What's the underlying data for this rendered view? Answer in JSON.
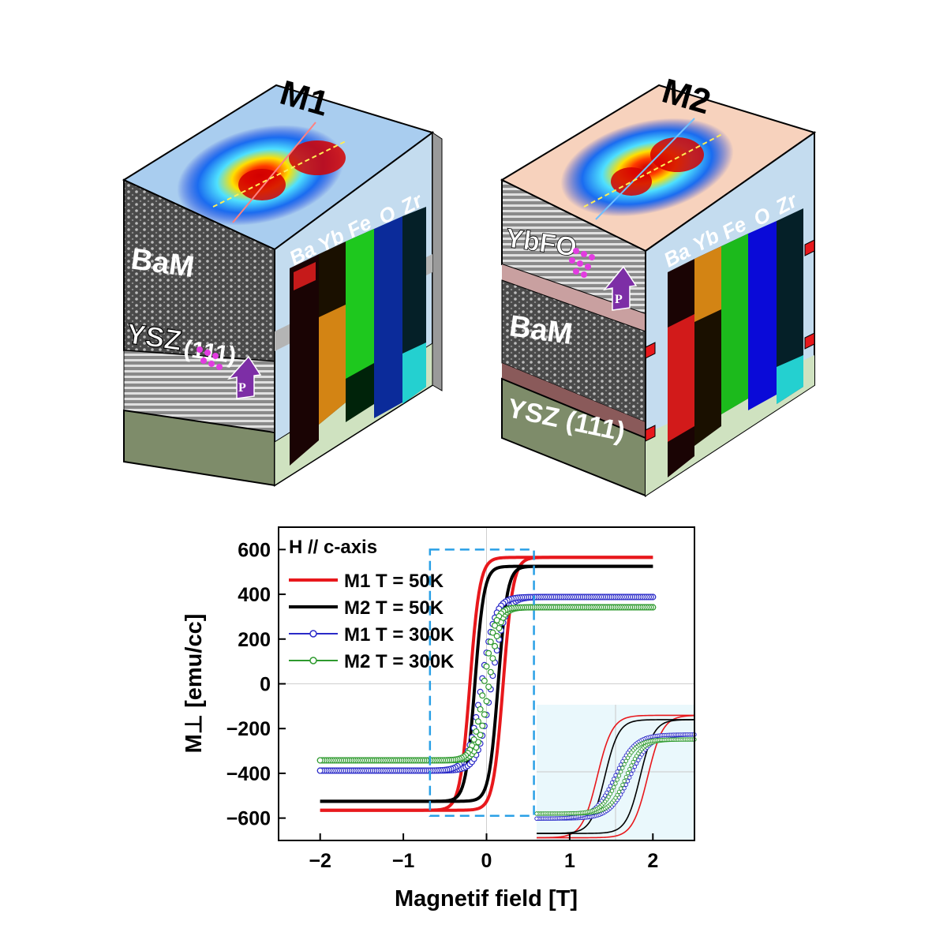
{
  "blocks": [
    {
      "title": "M1",
      "layers": [
        "BaM",
        "YSZ",
        "(111)"
      ],
      "elements": [
        "Ba",
        "Yb",
        "Fe",
        "O",
        "Zr"
      ],
      "polarization": "P",
      "top_color": "#a9cdef"
    },
    {
      "title": "M2",
      "layers": [
        "YbFO",
        "BaM",
        "YSZ (111)"
      ],
      "elements": [
        "Ba",
        "Yb",
        "Fe",
        "O",
        "Zr"
      ],
      "polarization": "P",
      "top_color": "#f7d2bd"
    }
  ],
  "chart_data": {
    "type": "line",
    "xlabel": "Magnetif field [T]",
    "ylabel": "M⊥ [emu/cc]",
    "xlim": [
      -2.5,
      2.5
    ],
    "ylim": [
      -700,
      700
    ],
    "xticks": [
      -2,
      -1,
      0,
      1,
      2
    ],
    "yticks": [
      600,
      400,
      200,
      0,
      -200,
      -400,
      -600
    ],
    "xtick_labels": [
      "−2",
      "−1",
      "0",
      "1",
      "2"
    ],
    "ytick_labels": [
      "600",
      "400",
      "200",
      "0",
      "−200",
      "−400",
      "−600"
    ],
    "annotation": "H // c-axis",
    "legend_placement": "top-left",
    "series": [
      {
        "name": "M1 T = 50K",
        "color": "#e8181c",
        "style": "line",
        "Ms": 565,
        "Hc": 0.2,
        "width": 0.12,
        "xmin": -2.0,
        "xmax": 2.0
      },
      {
        "name": "M2 T = 50K",
        "color": "#000000",
        "style": "line",
        "Ms": 525,
        "Hc": 0.14,
        "width": 0.11,
        "xmin": -2.0,
        "xmax": 2.0
      },
      {
        "name": "M1 T = 300K",
        "color": "#2a2ac8",
        "style": "circle",
        "Ms": 388,
        "Hc": 0.06,
        "width": 0.16,
        "xmin": -2.0,
        "xmax": 2.0
      },
      {
        "name": "M2 T = 300K",
        "color": "#2e9a2e",
        "style": "circle",
        "Ms": 342,
        "Hc": 0.03,
        "width": 0.13,
        "xmin": -2.0,
        "xmax": 2.0
      }
    ],
    "inset_region": {
      "x": [
        -0.68,
        0.57
      ],
      "y": [
        -590,
        600
      ]
    },
    "inset_range": {
      "x": [
        -0.68,
        0.57
      ],
      "y": [
        -590,
        600
      ]
    }
  }
}
